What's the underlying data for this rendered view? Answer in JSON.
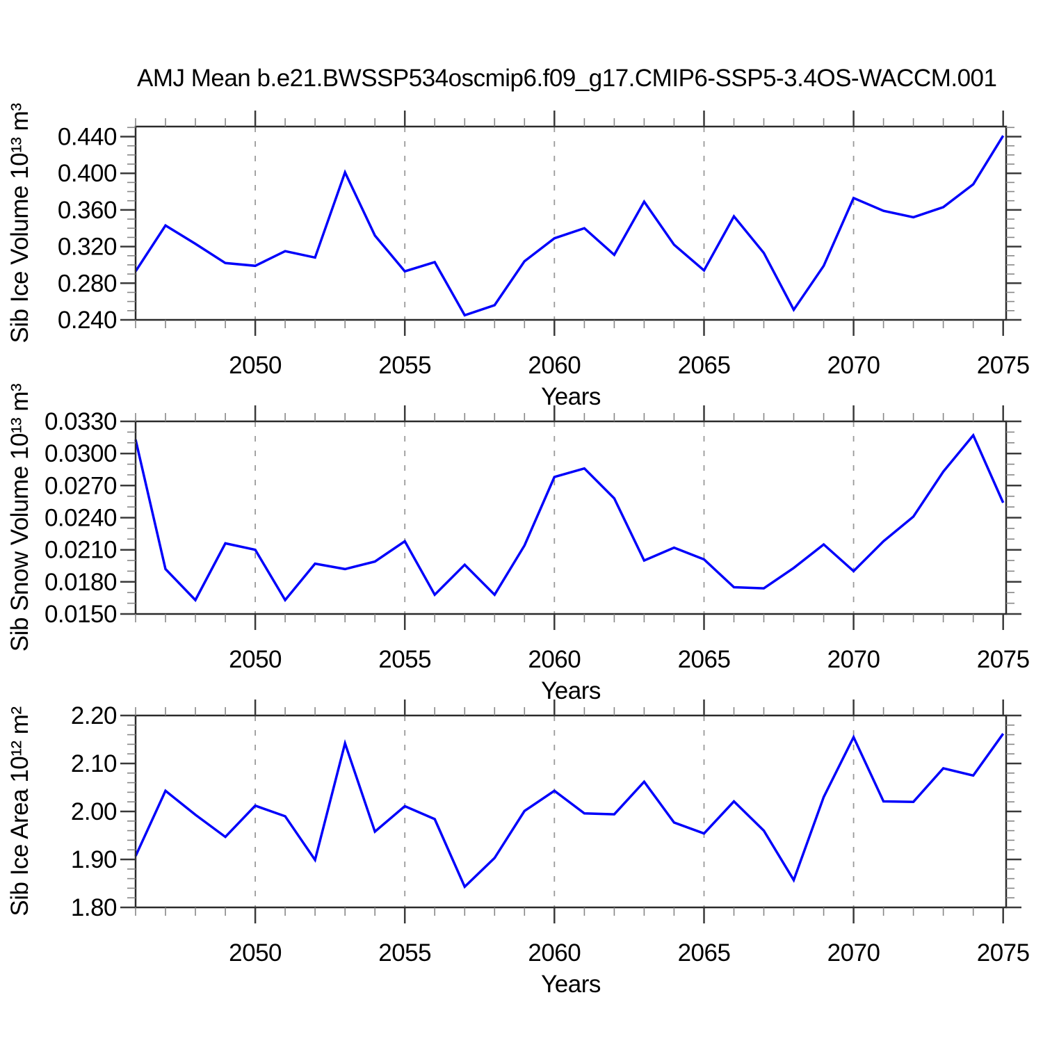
{
  "figure": {
    "title": "AMJ Mean b.e21.BWSSP534oscmip6.f09_g17.CMIP6-SSP5-3.4OS-WACCM.001"
  },
  "chart_data": [
    {
      "id": "sib-ice-volume",
      "type": "line",
      "title": "",
      "xlabel": "Years",
      "ylabel": "Sib Ice Volume 10¹³ m³",
      "line_color": "#0000fa",
      "grid": "vertical-dashed",
      "legend": "none",
      "x": [
        2046,
        2047,
        2048,
        2049,
        2050,
        2051,
        2052,
        2053,
        2054,
        2055,
        2056,
        2057,
        2058,
        2059,
        2060,
        2061,
        2062,
        2063,
        2064,
        2065,
        2066,
        2067,
        2068,
        2069,
        2070,
        2071,
        2072,
        2073,
        2074,
        2075
      ],
      "values": [
        0.293,
        0.343,
        0.323,
        0.302,
        0.299,
        0.315,
        0.308,
        0.401,
        0.332,
        0.293,
        0.303,
        0.245,
        0.256,
        0.304,
        0.329,
        0.34,
        0.311,
        0.369,
        0.322,
        0.294,
        0.353,
        0.313,
        0.251,
        0.299,
        0.373,
        0.359,
        0.352,
        0.363,
        0.388,
        0.441
      ],
      "xlim": [
        2046,
        2075.1
      ],
      "ylim": [
        0.24,
        0.451
      ],
      "yticks": [
        0.24,
        0.28,
        0.32,
        0.36,
        0.4,
        0.44
      ],
      "ytick_labels": [
        "0.240",
        "0.280",
        "0.320",
        "0.360",
        "0.400",
        "0.440"
      ],
      "y_minor_step": 0.01,
      "xticks": [
        2050,
        2055,
        2060,
        2065,
        2070,
        2075
      ],
      "xtick_labels": [
        "2050",
        "2055",
        "2060",
        "2065",
        "2070",
        "2075"
      ],
      "x_minor_step": 1,
      "grid_x": [
        2050,
        2055,
        2060,
        2065,
        2070
      ]
    },
    {
      "id": "sib-snow-volume",
      "type": "line",
      "title": "",
      "xlabel": "Years",
      "ylabel": "Sib Snow Volume 10¹³ m³",
      "line_color": "#0000fa",
      "grid": "vertical-dashed",
      "legend": "none",
      "x": [
        2046,
        2047,
        2048,
        2049,
        2050,
        2051,
        2052,
        2053,
        2054,
        2055,
        2056,
        2057,
        2058,
        2059,
        2060,
        2061,
        2062,
        2063,
        2064,
        2065,
        2066,
        2067,
        2068,
        2069,
        2070,
        2071,
        2072,
        2073,
        2074,
        2075
      ],
      "values": [
        0.0313,
        0.0192,
        0.0163,
        0.0216,
        0.021,
        0.0163,
        0.0197,
        0.0192,
        0.0199,
        0.0218,
        0.0168,
        0.0196,
        0.0168,
        0.0214,
        0.0278,
        0.0286,
        0.0258,
        0.02,
        0.0212,
        0.0201,
        0.0175,
        0.0174,
        0.0193,
        0.0215,
        0.019,
        0.0218,
        0.0241,
        0.0283,
        0.0317,
        0.0254
      ],
      "xlim": [
        2046,
        2075.1
      ],
      "ylim": [
        0.015,
        0.033
      ],
      "yticks": [
        0.015,
        0.018,
        0.021,
        0.024,
        0.027,
        0.03,
        0.033
      ],
      "ytick_labels": [
        "0.0150",
        "0.0180",
        "0.0210",
        "0.0240",
        "0.0270",
        "0.0300",
        "0.0330"
      ],
      "y_minor_step": 0.001,
      "xticks": [
        2050,
        2055,
        2060,
        2065,
        2070,
        2075
      ],
      "xtick_labels": [
        "2050",
        "2055",
        "2060",
        "2065",
        "2070",
        "2075"
      ],
      "x_minor_step": 1,
      "grid_x": [
        2050,
        2055,
        2060,
        2065,
        2070
      ]
    },
    {
      "id": "sib-ice-area",
      "type": "line",
      "title": "",
      "xlabel": "Years",
      "ylabel": "Sib Ice Area 10¹² m²",
      "line_color": "#0000fa",
      "grid": "vertical-dashed",
      "legend": "none",
      "x": [
        2046,
        2047,
        2048,
        2049,
        2050,
        2051,
        2052,
        2053,
        2054,
        2055,
        2056,
        2057,
        2058,
        2059,
        2060,
        2061,
        2062,
        2063,
        2064,
        2065,
        2066,
        2067,
        2068,
        2069,
        2070,
        2071,
        2072,
        2073,
        2074,
        2075
      ],
      "values": [
        1.907,
        2.043,
        1.993,
        1.947,
        2.012,
        1.99,
        1.899,
        2.142,
        1.958,
        2.011,
        1.984,
        1.843,
        1.903,
        2.001,
        2.043,
        1.996,
        1.994,
        2.062,
        1.977,
        1.954,
        2.021,
        1.96,
        1.857,
        2.03,
        2.155,
        2.021,
        2.02,
        2.09,
        2.075,
        2.162
      ],
      "xlim": [
        2046,
        2075.1
      ],
      "ylim": [
        1.8,
        2.2
      ],
      "yticks": [
        1.8,
        1.9,
        2.0,
        2.1,
        2.2
      ],
      "ytick_labels": [
        "1.80",
        "1.90",
        "2.00",
        "2.10",
        "2.20"
      ],
      "y_minor_step": 0.02,
      "xticks": [
        2050,
        2055,
        2060,
        2065,
        2070,
        2075
      ],
      "xtick_labels": [
        "2050",
        "2055",
        "2060",
        "2065",
        "2070",
        "2075"
      ],
      "x_minor_step": 1,
      "grid_x": [
        2050,
        2055,
        2060,
        2065,
        2070
      ]
    }
  ]
}
